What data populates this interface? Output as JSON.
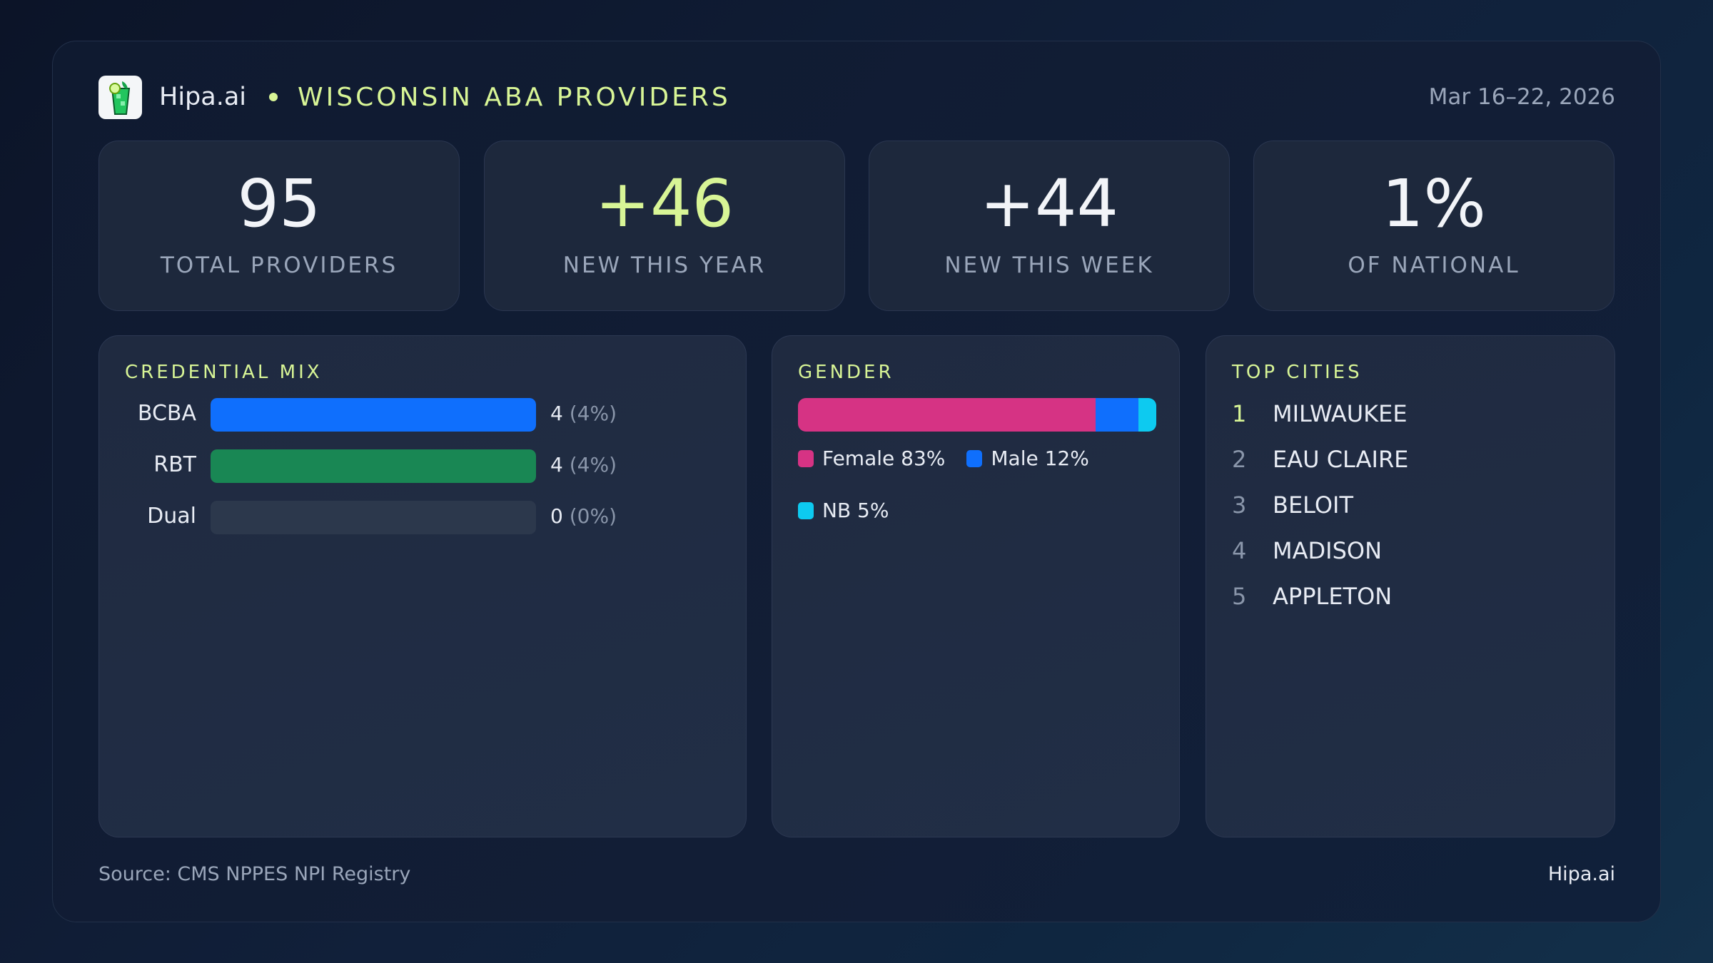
{
  "header": {
    "brand": "Hipa.ai",
    "title": "WISCONSIN ABA PROVIDERS",
    "date_range": "Mar 16–22, 2026",
    "logo_icon": "mojito-glass-icon"
  },
  "stats": [
    {
      "value": "95",
      "label": "TOTAL PROVIDERS"
    },
    {
      "value": "+46",
      "label": "NEW THIS YEAR"
    },
    {
      "value": "+44",
      "label": "NEW THIS WEEK"
    },
    {
      "value": "1%",
      "label": "OF NATIONAL"
    }
  ],
  "credential_mix": {
    "title": "CREDENTIAL MIX",
    "items": [
      {
        "label": "BCBA",
        "count": "4",
        "pct": "(4%)",
        "fill": 1.0,
        "color": "#0f6ffd"
      },
      {
        "label": "RBT",
        "count": "4",
        "pct": "(4%)",
        "fill": 1.0,
        "color": "#198754"
      },
      {
        "label": "Dual",
        "count": "0",
        "pct": "(0%)",
        "fill": 0,
        "color": "#2c384c"
      }
    ]
  },
  "gender": {
    "title": "GENDER",
    "segments": [
      {
        "label": "Female 83%",
        "value": 83,
        "color": "#d63384"
      },
      {
        "label": "Male 12%",
        "value": 12,
        "color": "#0f6ffd"
      },
      {
        "label": "NB 5%",
        "value": 5,
        "color": "#0dcaf0"
      }
    ]
  },
  "top_cities": {
    "title": "TOP CITIES",
    "items": [
      {
        "rank": "1",
        "name": "MILWAUKEE"
      },
      {
        "rank": "2",
        "name": "EAU CLAIRE"
      },
      {
        "rank": "3",
        "name": "BELOIT"
      },
      {
        "rank": "4",
        "name": "MADISON"
      },
      {
        "rank": "5",
        "name": "APPLETON"
      }
    ]
  },
  "footer": {
    "source": "Source: CMS NPPES NPI Registry",
    "brand": "Hipa.ai"
  }
}
